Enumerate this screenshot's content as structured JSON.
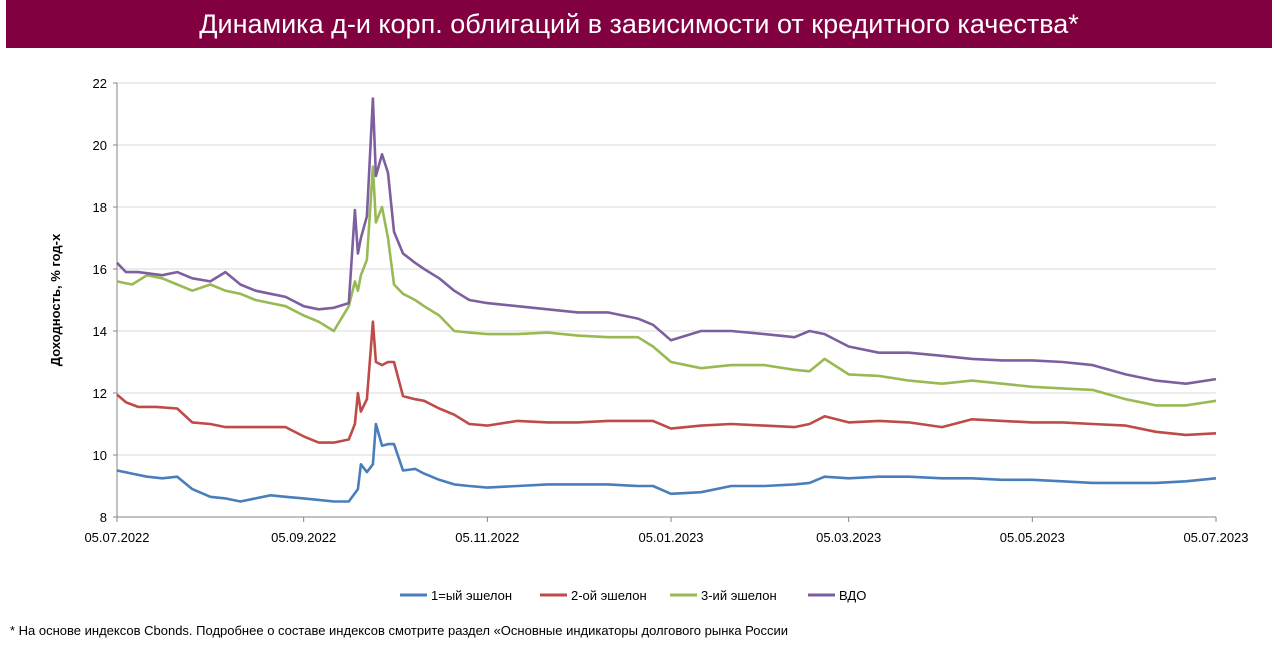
{
  "title": "Динамика д-и корп. облигаций в зависимости от кредитного качества*",
  "footnote": "* На основе индексов Cbonds. Подробнее о составе индексов смотрите раздел «Основные индикаторы долгового рынка России",
  "colors": {
    "title_bg": "#800040",
    "series1": "#4A7EBB",
    "series2": "#BE4B48",
    "series3": "#98B954",
    "series4": "#7D5FA0",
    "grid": "#d9d9d9"
  },
  "chart_data": {
    "type": "line",
    "title": "",
    "xlabel": "",
    "ylabel": "Доходность, % год-х",
    "ylim": [
      8,
      22
    ],
    "yticks": [
      "8",
      "10",
      "12",
      "14",
      "16",
      "18",
      "20",
      "22"
    ],
    "xlim": [
      "2022-07-05",
      "2023-07-05"
    ],
    "xticks": [
      "05.07.2022",
      "05.09.2022",
      "05.11.2022",
      "05.01.2023",
      "05.03.2023",
      "05.05.2023",
      "05.07.2023"
    ],
    "grid": "horizontal",
    "legend": "bottom",
    "series": [
      {
        "name": "1=ый эшелон",
        "x": [
          "2022-07-05",
          "2022-07-10",
          "2022-07-15",
          "2022-07-20",
          "2022-07-25",
          "2022-07-30",
          "2022-08-05",
          "2022-08-10",
          "2022-08-15",
          "2022-08-20",
          "2022-08-25",
          "2022-08-30",
          "2022-09-05",
          "2022-09-10",
          "2022-09-15",
          "2022-09-20",
          "2022-09-23",
          "2022-09-24",
          "2022-09-26",
          "2022-09-28",
          "2022-09-29",
          "2022-10-01",
          "2022-10-03",
          "2022-10-05",
          "2022-10-08",
          "2022-10-12",
          "2022-10-15",
          "2022-10-20",
          "2022-10-25",
          "2022-10-30",
          "2022-11-05",
          "2022-11-15",
          "2022-11-25",
          "2022-12-05",
          "2022-12-15",
          "2022-12-25",
          "2022-12-30",
          "2023-01-05",
          "2023-01-15",
          "2023-01-25",
          "2023-02-05",
          "2023-02-15",
          "2023-02-20",
          "2023-02-25",
          "2023-03-05",
          "2023-03-15",
          "2023-03-25",
          "2023-04-05",
          "2023-04-15",
          "2023-04-25",
          "2023-05-05",
          "2023-05-15",
          "2023-05-25",
          "2023-06-05",
          "2023-06-15",
          "2023-06-25",
          "2023-07-05"
        ],
        "values": [
          9.5,
          9.4,
          9.3,
          9.25,
          9.3,
          8.9,
          8.65,
          8.6,
          8.5,
          8.6,
          8.7,
          8.65,
          8.6,
          8.55,
          8.5,
          8.5,
          8.9,
          9.7,
          9.45,
          9.7,
          11.0,
          10.3,
          10.35,
          10.35,
          9.5,
          9.55,
          9.4,
          9.2,
          9.05,
          9.0,
          8.95,
          9.0,
          9.05,
          9.05,
          9.05,
          9.0,
          9.0,
          8.75,
          8.8,
          9.0,
          9.0,
          9.05,
          9.1,
          9.3,
          9.25,
          9.3,
          9.3,
          9.25,
          9.25,
          9.2,
          9.2,
          9.15,
          9.1,
          9.1,
          9.1,
          9.15,
          9.25
        ]
      },
      {
        "name": "2-ой эшелон",
        "x": [
          "2022-07-05",
          "2022-07-08",
          "2022-07-12",
          "2022-07-18",
          "2022-07-25",
          "2022-07-30",
          "2022-08-05",
          "2022-08-10",
          "2022-08-20",
          "2022-08-30",
          "2022-09-05",
          "2022-09-10",
          "2022-09-15",
          "2022-09-20",
          "2022-09-22",
          "2022-09-23",
          "2022-09-24",
          "2022-09-26",
          "2022-09-28",
          "2022-09-29",
          "2022-10-01",
          "2022-10-03",
          "2022-10-05",
          "2022-10-08",
          "2022-10-12",
          "2022-10-15",
          "2022-10-20",
          "2022-10-25",
          "2022-10-30",
          "2022-11-05",
          "2022-11-15",
          "2022-11-25",
          "2022-12-05",
          "2022-12-15",
          "2022-12-25",
          "2022-12-30",
          "2023-01-05",
          "2023-01-15",
          "2023-01-25",
          "2023-02-05",
          "2023-02-15",
          "2023-02-20",
          "2023-02-25",
          "2023-03-05",
          "2023-03-15",
          "2023-03-25",
          "2023-04-05",
          "2023-04-15",
          "2023-04-25",
          "2023-05-05",
          "2023-05-15",
          "2023-05-25",
          "2023-06-05",
          "2023-06-15",
          "2023-06-25",
          "2023-07-05"
        ],
        "values": [
          11.95,
          11.7,
          11.55,
          11.55,
          11.5,
          11.05,
          11.0,
          10.9,
          10.9,
          10.9,
          10.6,
          10.4,
          10.4,
          10.5,
          11.0,
          12.0,
          11.4,
          11.8,
          14.3,
          13.0,
          12.9,
          13.0,
          13.0,
          11.9,
          11.8,
          11.75,
          11.5,
          11.3,
          11.0,
          10.95,
          11.1,
          11.05,
          11.05,
          11.1,
          11.1,
          11.1,
          10.85,
          10.95,
          11.0,
          10.95,
          10.9,
          11.0,
          11.25,
          11.05,
          11.1,
          11.05,
          10.9,
          11.15,
          11.1,
          11.05,
          11.05,
          11.0,
          10.95,
          10.75,
          10.65,
          10.7
        ]
      },
      {
        "name": "3-ий эшелон",
        "x": [
          "2022-07-05",
          "2022-07-10",
          "2022-07-15",
          "2022-07-20",
          "2022-07-25",
          "2022-07-30",
          "2022-08-05",
          "2022-08-10",
          "2022-08-15",
          "2022-08-20",
          "2022-08-25",
          "2022-08-30",
          "2022-09-05",
          "2022-09-10",
          "2022-09-15",
          "2022-09-20",
          "2022-09-22",
          "2022-09-23",
          "2022-09-24",
          "2022-09-26",
          "2022-09-28",
          "2022-09-29",
          "2022-10-01",
          "2022-10-03",
          "2022-10-05",
          "2022-10-08",
          "2022-10-12",
          "2022-10-15",
          "2022-10-20",
          "2022-10-25",
          "2022-10-30",
          "2022-11-05",
          "2022-11-15",
          "2022-11-25",
          "2022-12-05",
          "2022-12-15",
          "2022-12-25",
          "2022-12-30",
          "2023-01-05",
          "2023-01-15",
          "2023-01-25",
          "2023-02-05",
          "2023-02-15",
          "2023-02-20",
          "2023-02-25",
          "2023-03-05",
          "2023-03-15",
          "2023-03-25",
          "2023-04-05",
          "2023-04-15",
          "2023-04-25",
          "2023-05-05",
          "2023-05-15",
          "2023-05-25",
          "2023-06-05",
          "2023-06-15",
          "2023-06-25",
          "2023-07-05"
        ],
        "values": [
          15.6,
          15.5,
          15.8,
          15.7,
          15.5,
          15.3,
          15.5,
          15.3,
          15.2,
          15.0,
          14.9,
          14.8,
          14.5,
          14.3,
          14.0,
          14.8,
          15.6,
          15.3,
          15.8,
          16.3,
          19.3,
          17.5,
          18.0,
          17.0,
          15.5,
          15.2,
          15.0,
          14.8,
          14.5,
          14.0,
          13.95,
          13.9,
          13.9,
          13.95,
          13.85,
          13.8,
          13.8,
          13.5,
          13.0,
          12.8,
          12.9,
          12.9,
          12.75,
          12.7,
          13.1,
          12.6,
          12.55,
          12.4,
          12.3,
          12.4,
          12.3,
          12.2,
          12.15,
          12.1,
          11.8,
          11.6,
          11.6,
          11.75
        ]
      },
      {
        "name": "ВДО",
        "x": [
          "2022-07-05",
          "2022-07-08",
          "2022-07-12",
          "2022-07-20",
          "2022-07-25",
          "2022-07-30",
          "2022-08-05",
          "2022-08-10",
          "2022-08-15",
          "2022-08-20",
          "2022-08-25",
          "2022-08-30",
          "2022-09-05",
          "2022-09-10",
          "2022-09-15",
          "2022-09-20",
          "2022-09-22",
          "2022-09-23",
          "2022-09-24",
          "2022-09-26",
          "2022-09-28",
          "2022-09-29",
          "2022-10-01",
          "2022-10-03",
          "2022-10-05",
          "2022-10-08",
          "2022-10-12",
          "2022-10-15",
          "2022-10-20",
          "2022-10-25",
          "2022-10-30",
          "2022-11-05",
          "2022-11-15",
          "2022-11-25",
          "2022-12-05",
          "2022-12-15",
          "2022-12-25",
          "2022-12-30",
          "2023-01-05",
          "2023-01-15",
          "2023-01-25",
          "2023-02-05",
          "2023-02-15",
          "2023-02-20",
          "2023-02-25",
          "2023-03-05",
          "2023-03-15",
          "2023-03-25",
          "2023-04-05",
          "2023-04-15",
          "2023-04-25",
          "2023-05-05",
          "2023-05-15",
          "2023-05-25",
          "2023-06-05",
          "2023-06-15",
          "2023-06-25",
          "2023-07-05"
        ],
        "values": [
          16.2,
          15.9,
          15.9,
          15.8,
          15.9,
          15.7,
          15.6,
          15.9,
          15.5,
          15.3,
          15.2,
          15.1,
          14.8,
          14.7,
          14.75,
          14.9,
          17.9,
          16.5,
          17.0,
          17.7,
          21.5,
          19.0,
          19.7,
          19.1,
          17.2,
          16.5,
          16.2,
          16.0,
          15.7,
          15.3,
          15.0,
          14.9,
          14.8,
          14.7,
          14.6,
          14.6,
          14.4,
          14.2,
          13.7,
          14.0,
          14.0,
          13.9,
          13.8,
          14.0,
          13.9,
          13.5,
          13.3,
          13.3,
          13.2,
          13.1,
          13.05,
          13.05,
          13.0,
          12.9,
          12.6,
          12.4,
          12.3,
          12.45
        ]
      }
    ]
  }
}
